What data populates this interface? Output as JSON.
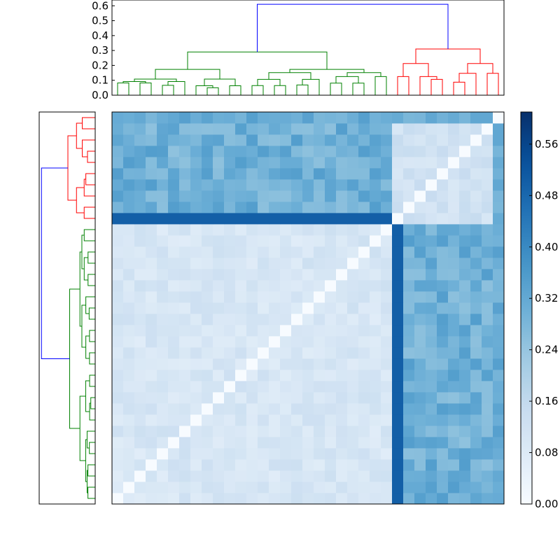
{
  "chart_data": [
    {
      "type": "dendrogram",
      "panel": "top",
      "orientation": "top",
      "yticks": [
        "0.0",
        "0.1",
        "0.2",
        "0.3",
        "0.4",
        "0.5",
        "0.6"
      ],
      "ylim": [
        0,
        0.62
      ],
      "n_leaves": 35,
      "root_height": 0.61,
      "colors": {
        "left_cluster": "#008000",
        "right_cluster": "#ff0000",
        "root": "#0000ff"
      }
    },
    {
      "type": "dendrogram",
      "panel": "left",
      "orientation": "left",
      "n_leaves": 35,
      "colors": {
        "top_cluster": "#ff0000",
        "bottom_cluster": "#008000",
        "root": "#0000ff"
      }
    },
    {
      "type": "heatmap",
      "panel": "main",
      "rows": 35,
      "cols": 35,
      "block_split": 25,
      "colormap": "Blues",
      "vmin": 0.0,
      "vmax": 0.61,
      "within_large_block": 0.1,
      "within_small_block": 0.12,
      "between_blocks": 0.3,
      "strong_row_value": 0.5,
      "diagonal": 0.0
    },
    {
      "type": "colorbar",
      "ticks": [
        "0.00",
        "0.08",
        "0.16",
        "0.24",
        "0.32",
        "0.40",
        "0.48",
        "0.56"
      ],
      "range": [
        0,
        0.61
      ]
    }
  ]
}
